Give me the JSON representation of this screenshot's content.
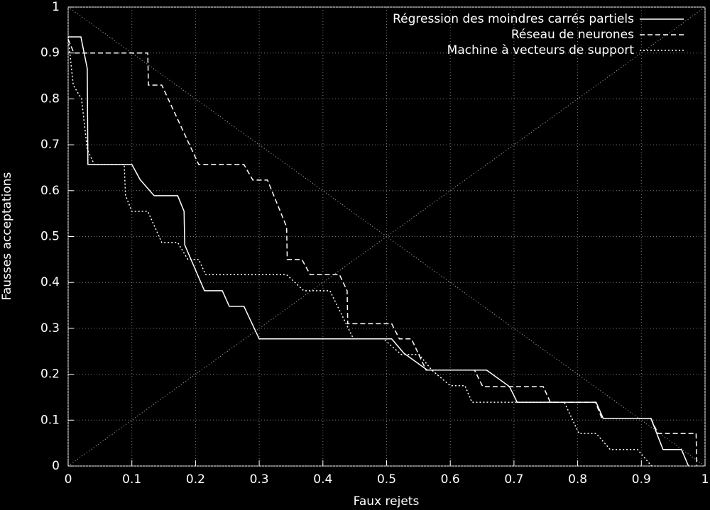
{
  "chart_data": {
    "type": "line",
    "xlabel": "Faux rejets",
    "ylabel": "Fausses acceptations",
    "xlim": [
      0,
      1
    ],
    "ylim": [
      0,
      1
    ],
    "xticks": [
      0,
      0.1,
      0.2,
      0.3,
      0.4,
      0.5,
      0.6,
      0.7,
      0.8,
      0.9,
      1
    ],
    "yticks": [
      0,
      0.1,
      0.2,
      0.3,
      0.4,
      0.5,
      0.6,
      0.7,
      0.8,
      0.9,
      1
    ],
    "grid": true,
    "legend": "top-right",
    "series": [
      {
        "name": "Régression des moindres carrés partiels",
        "color": "#ffffff",
        "style": "solid",
        "x": [
          0,
          0.02,
          0.03,
          0.031,
          0.1,
          0.113,
          0.135,
          0.172,
          0.182,
          0.183,
          0.214,
          0.242,
          0.253,
          0.276,
          0.3,
          0.508,
          0.527,
          0.564,
          0.657,
          0.693,
          0.705,
          0.829,
          0.84,
          0.915,
          0.934,
          0.963,
          0.974
        ],
        "values": [
          0.935,
          0.935,
          0.866,
          0.657,
          0.657,
          0.624,
          0.589,
          0.589,
          0.555,
          0.482,
          0.382,
          0.382,
          0.348,
          0.348,
          0.277,
          0.277,
          0.246,
          0.209,
          0.209,
          0.173,
          0.139,
          0.139,
          0.104,
          0.104,
          0.036,
          0.036,
          0
        ]
      },
      {
        "name": "Réseau de neurones",
        "color": "#ffffff",
        "style": "dashed",
        "x": [
          0,
          0.009,
          0.125,
          0.126,
          0.147,
          0.205,
          0.276,
          0.29,
          0.313,
          0.343,
          0.344,
          0.367,
          0.38,
          0.426,
          0.438,
          0.439,
          0.508,
          0.52,
          0.539,
          0.562,
          0.638,
          0.651,
          0.746,
          0.757,
          0.828,
          0.838,
          0.915,
          0.926,
          0.986,
          0.987
        ],
        "values": [
          0.93,
          0.9,
          0.9,
          0.83,
          0.83,
          0.657,
          0.657,
          0.623,
          0.623,
          0.521,
          0.45,
          0.45,
          0.417,
          0.417,
          0.382,
          0.31,
          0.31,
          0.277,
          0.277,
          0.209,
          0.209,
          0.173,
          0.173,
          0.139,
          0.139,
          0.104,
          0.104,
          0.071,
          0.071,
          0
        ]
      },
      {
        "name": "Machine à vecteurs de support",
        "color": "#ffffff",
        "style": "dotted",
        "x": [
          0,
          0.008,
          0.021,
          0.03,
          0.041,
          0.088,
          0.09,
          0.1,
          0.125,
          0.147,
          0.172,
          0.188,
          0.205,
          0.216,
          0.343,
          0.37,
          0.411,
          0.448,
          0.495,
          0.523,
          0.551,
          0.571,
          0.6,
          0.623,
          0.634,
          0.779,
          0.802,
          0.829,
          0.851,
          0.894,
          0.916
        ],
        "values": [
          0.935,
          0.83,
          0.8,
          0.69,
          0.657,
          0.657,
          0.59,
          0.555,
          0.555,
          0.487,
          0.487,
          0.45,
          0.45,
          0.417,
          0.417,
          0.382,
          0.382,
          0.277,
          0.277,
          0.243,
          0.243,
          0.209,
          0.175,
          0.175,
          0.139,
          0.139,
          0.071,
          0.071,
          0.036,
          0.036,
          0
        ]
      }
    ]
  }
}
